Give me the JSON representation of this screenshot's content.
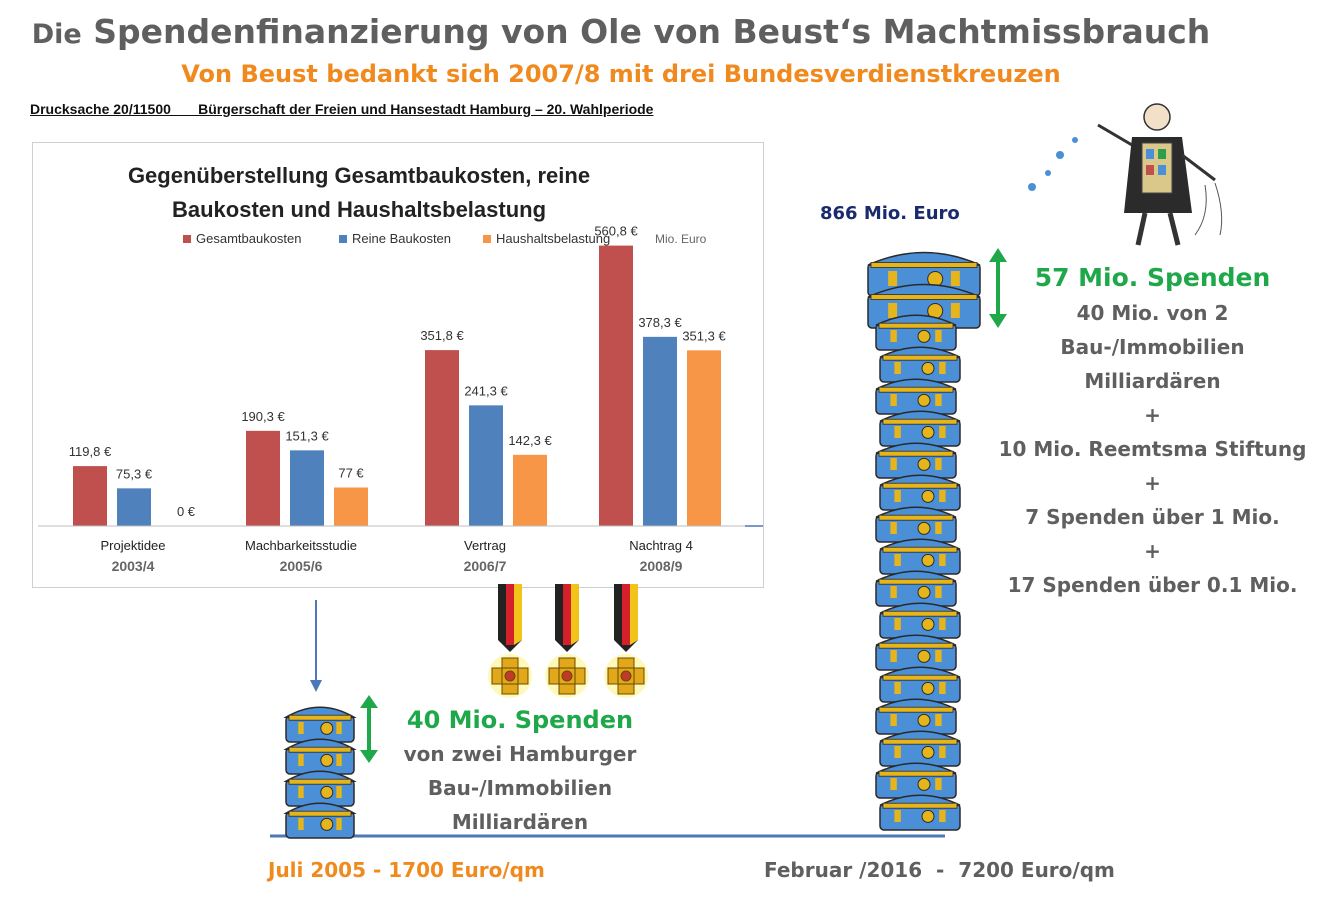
{
  "header": {
    "title_prefix": "Die",
    "title_main": "Spendenfinanzierung von Ole von Beust‘s Machtmissbrauch",
    "subtitle": "Von Beust bedankt sich 2007/8 mit drei Bundesverdienstkreuzen",
    "doc_ref": "Drucksache 20/11500       Bürgerschaft der Freien und Hansestadt Hamburg – 20. Wahlperiode"
  },
  "chart_data": {
    "type": "bar",
    "title_line1": "Gegenüberstellung Gesamtbaukosten, reine",
    "title_line2": "Baukosten und Haushaltsbelastung",
    "unit": "Mio. Euro",
    "categories": [
      "Projektidee",
      "Machbarkeitsstudie",
      "Vertrag",
      "Nachtrag 4"
    ],
    "years": [
      "2003/4",
      "2005/6",
      "2006/7",
      "2008/9"
    ],
    "series": [
      {
        "name": "Gesamtbaukosten",
        "color": "#c0504d",
        "values": [
          119.8,
          190.3,
          351.8,
          560.8
        ],
        "labels": [
          "119,8 €",
          "190,3 €",
          "351,8 €",
          "560,8 €"
        ]
      },
      {
        "name": "Reine Baukosten",
        "color": "#4f81bd",
        "values": [
          75.3,
          151.3,
          241.3,
          378.3
        ],
        "labels": [
          "75,3 €",
          "151,3 €",
          "241,3 €",
          "378,3 €"
        ]
      },
      {
        "name": "Haushaltsbelastung",
        "color": "#f79646",
        "values": [
          0,
          77,
          142.3,
          351.3
        ],
        "labels": [
          "0 €",
          "77 €",
          "142,3 €",
          "351,3 €"
        ]
      }
    ],
    "ylim": [
      0,
      600
    ],
    "grid": false,
    "legend": "top"
  },
  "right_panel": {
    "total": "866 Mio. Euro",
    "headline": "57 Mio. Spenden",
    "lines": [
      "40 Mio. von 2",
      "Bau-/Immobilien",
      "Milliardären",
      "+",
      "10 Mio. Reemtsma Stiftung",
      "+",
      "7 Spenden über  1 Mio.",
      "+",
      "17 Spenden über 0.1 Mio."
    ]
  },
  "middle_panel": {
    "headline": "40 Mio. Spenden",
    "lines": [
      "von zwei Hamburger",
      "Bau-/Immobilien",
      "Milliardären"
    ]
  },
  "timeline": {
    "left_label": "Juli 2005 - 1700 Euro/qm",
    "right_label": "Februar /2016  -  7200 Euro/qm"
  },
  "colors": {
    "chest": "#4b8fd6",
    "chest_trim": "#e6b51c",
    "arrow_green": "#1fa84a",
    "timeline_blue": "#4a78b8"
  }
}
